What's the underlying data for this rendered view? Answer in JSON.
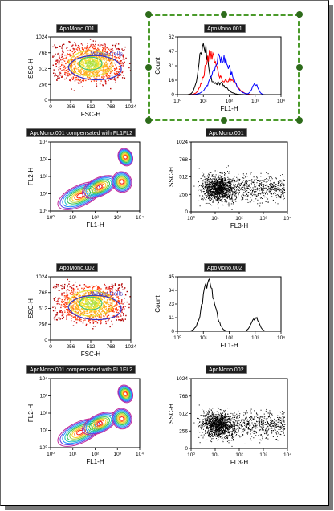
{
  "plots": [
    {
      "title": "ApoMono.001",
      "xlabel": "FSC-H",
      "ylabel": "SSC-H",
      "xticks": [
        "0",
        "256",
        "512",
        "768",
        "1024"
      ],
      "yticks": [
        "1024",
        "768",
        "512",
        "256",
        "0"
      ],
      "gate_label": "Whole Cells"
    },
    {
      "title": "ApoMono.001",
      "xlabel": "FL1-H",
      "ylabel": "Count",
      "xticks": [
        "10⁰",
        "10¹",
        "10²",
        "10³",
        "10⁴"
      ],
      "yticks": [
        "62",
        "47",
        "31",
        "16",
        "0"
      ]
    },
    {
      "title": "ApoMono.001 compensated with FL1FL2",
      "xlabel": "FL1-H",
      "ylabel": "FL2-H",
      "xticks": [
        "10⁰",
        "10¹",
        "10²",
        "10³",
        "10⁴"
      ],
      "yticks": [
        "10⁴",
        "10³",
        "10²",
        "10¹",
        "10⁰"
      ]
    },
    {
      "title": "ApoMono.001",
      "xlabel": "FL3-H",
      "ylabel": "SSC-H",
      "xticks": [
        "10⁰",
        "10¹",
        "10²",
        "10³",
        "10⁴"
      ],
      "yticks": [
        "1024",
        "768",
        "512",
        "256",
        "0"
      ]
    },
    {
      "title": "ApoMono.002",
      "xlabel": "FSC-H",
      "ylabel": "SSC-H",
      "xticks": [
        "0",
        "256",
        "512",
        "768",
        "1024"
      ],
      "yticks": [
        "1024",
        "768",
        "512",
        "256",
        "0"
      ],
      "gate_label": "Whole Cells"
    },
    {
      "title": "ApoMono.002",
      "xlabel": "FL1-H",
      "ylabel": "Count",
      "xticks": [
        "10⁰",
        "10¹",
        "10²",
        "10³",
        "10⁴"
      ],
      "yticks": [
        "45",
        "34",
        "23",
        "11",
        "0"
      ]
    },
    {
      "title": "ApoMono.001 compensated with FL1FL2",
      "xlabel": "FL1-H",
      "ylabel": "FL2-H",
      "xticks": [
        "10⁰",
        "10¹",
        "10²",
        "10³",
        "10⁴"
      ],
      "yticks": [
        "10⁴",
        "10³",
        "10²",
        "10¹",
        "10⁰"
      ]
    },
    {
      "title": "ApoMono.002",
      "xlabel": "FL3-H",
      "ylabel": "SSC-H",
      "xticks": [
        "10⁰",
        "10¹",
        "10²",
        "10³",
        "10⁴"
      ],
      "yticks": [
        "1024",
        "768",
        "512",
        "256",
        "0"
      ]
    }
  ],
  "colors": {
    "selection": "#4a9a2a",
    "histogram_black": "#000000",
    "histogram_red": "#ff0000",
    "histogram_blue": "#0000ff",
    "gate": "#3232c8"
  }
}
